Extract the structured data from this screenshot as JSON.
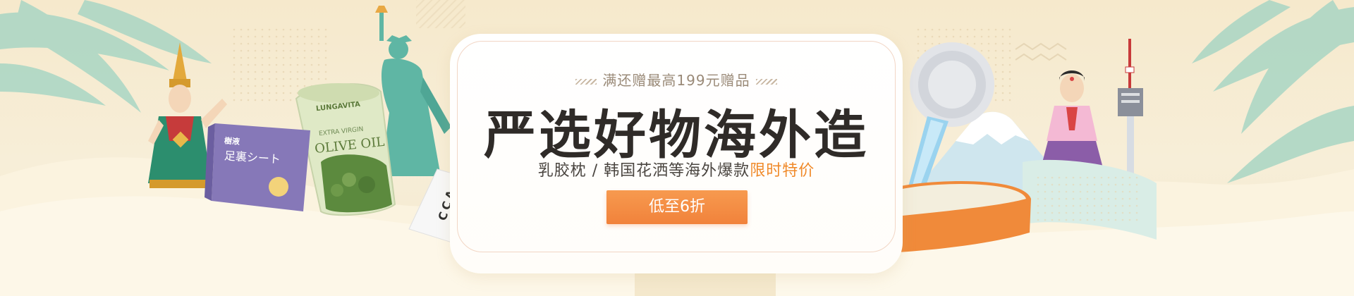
{
  "promo": {
    "tagline": "满还赠最高199元赠品",
    "headline": "严选好物海外造",
    "description_main": "乳胶枕 / 韩国花洒等海外爆款",
    "description_highlight": "限时特价",
    "cta_label": "低至6折"
  },
  "products": {
    "foot_sheet_label": "足裏シート",
    "foot_sheet_small": "樹液",
    "olive_oil_brand": "LUNGAVITA",
    "olive_oil_line1": "EXTRA VIRGIN",
    "olive_oil_line2": "OLIVE OIL",
    "bottle_letters": "CCA"
  },
  "colors": {
    "accent": "#f1823b",
    "highlight_text": "#f08a2a",
    "title_text": "#2f2b28",
    "background": "#f7ecd3"
  },
  "icons": [
    "palm-leaf-icon",
    "thai-dancer-illustration",
    "statue-of-liberty-illustration",
    "korean-lady-illustration",
    "seoul-tower-illustration",
    "mount-fuji-illustration"
  ]
}
